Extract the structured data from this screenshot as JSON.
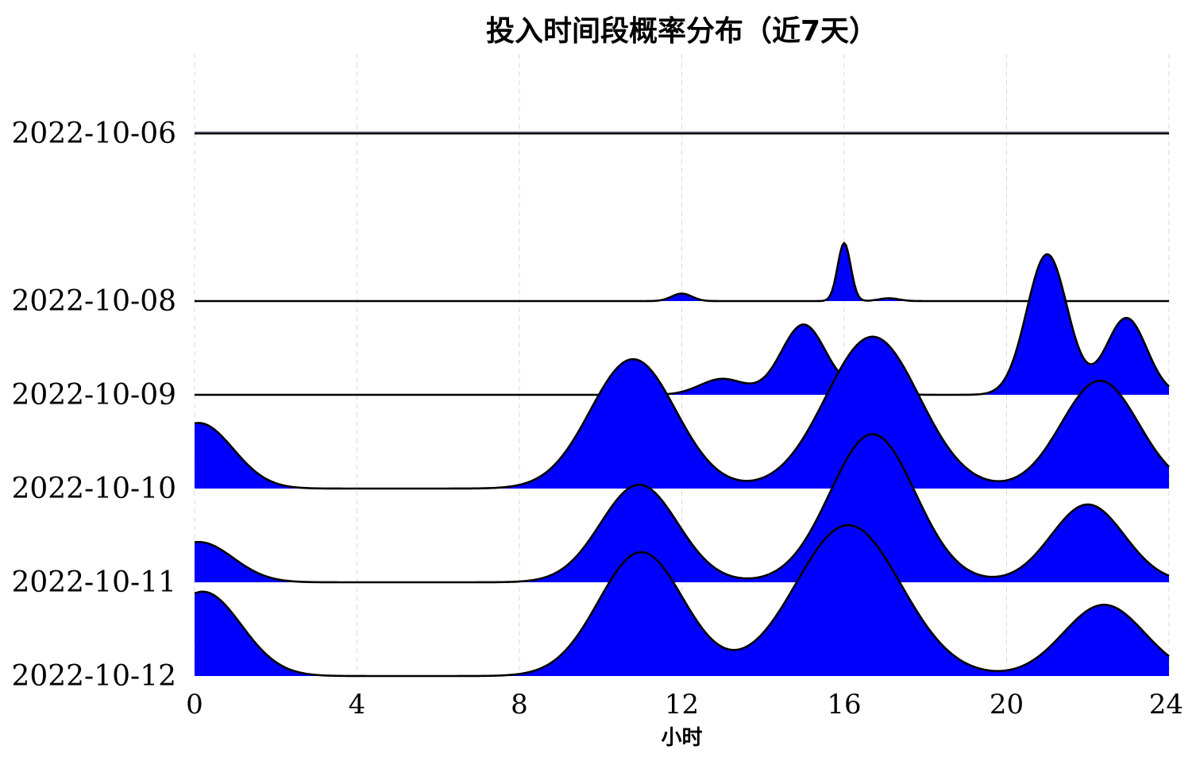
{
  "chart_data": {
    "type": "area",
    "subtype": "ridgeline-density",
    "title": "投入时间段概率分布（近7天）",
    "xlabel": "小时",
    "ylabel": "",
    "xlim": [
      0,
      24
    ],
    "x_ticks": [
      "0",
      "4",
      "8",
      "12",
      "16",
      "20",
      "24"
    ],
    "grid": "vertical-dashed",
    "fill_color": "#0000ff",
    "line_color": "#000000",
    "series": [
      {
        "name": "2022-10-06",
        "components": []
      },
      {
        "name": "2022-10-08",
        "components": [
          [
            12,
            0.25,
            0.08
          ],
          [
            16,
            0.16,
            0.62
          ],
          [
            17.1,
            0.25,
            0.03
          ]
        ]
      },
      {
        "name": "2022-10-09",
        "components": [
          [
            13,
            0.55,
            0.17
          ],
          [
            15,
            0.55,
            0.75
          ],
          [
            16.6,
            0.45,
            0.1
          ],
          [
            21,
            0.5,
            1.5
          ],
          [
            22.95,
            0.5,
            0.82
          ]
        ]
      },
      {
        "name": "2022-10-10",
        "components": [
          [
            0.1,
            0.85,
            0.7
          ],
          [
            10.8,
            1.05,
            1.38
          ],
          [
            16.7,
            1.15,
            1.62
          ],
          [
            22.3,
            0.95,
            1.15
          ]
        ]
      },
      {
        "name": "2022-10-11",
        "components": [
          [
            0.1,
            0.85,
            0.43
          ],
          [
            10.95,
            0.95,
            1.04
          ],
          [
            16.7,
            1.05,
            1.58
          ],
          [
            22.0,
            0.9,
            0.83
          ]
        ]
      },
      {
        "name": "2022-10-12",
        "components": [
          [
            0.2,
            0.95,
            0.9
          ],
          [
            11.0,
            1.05,
            1.32
          ],
          [
            16.1,
            1.3,
            1.61
          ],
          [
            22.4,
            1.0,
            0.76
          ]
        ]
      }
    ]
  }
}
